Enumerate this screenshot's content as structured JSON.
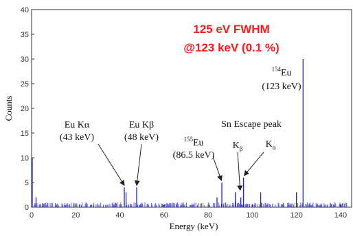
{
  "chart_data": {
    "type": "bar",
    "title_lines": [
      "125 eV FWHM",
      "@123 keV (0.1 %)"
    ],
    "title_color": "#ff1a1a",
    "xlabel": "Energy (keV)",
    "ylabel": "Counts",
    "xlim": [
      0,
      145
    ],
    "ylim": [
      0,
      40
    ],
    "xticks": [
      0,
      20,
      40,
      60,
      80,
      100,
      120,
      140
    ],
    "yticks": [
      0,
      5,
      10,
      15,
      20,
      25,
      30,
      35,
      40
    ],
    "grid": false,
    "series_color": "#1f1fe6",
    "background_noise_max": 1,
    "peaks": [
      {
        "x": 0.3,
        "y": 10
      },
      {
        "x": 2.0,
        "y": 2
      },
      {
        "x": 42.0,
        "y": 4
      },
      {
        "x": 42.8,
        "y": 3
      },
      {
        "x": 47.6,
        "y": 4
      },
      {
        "x": 86.2,
        "y": 5
      },
      {
        "x": 84.0,
        "y": 2
      },
      {
        "x": 92.3,
        "y": 3
      },
      {
        "x": 94.8,
        "y": 2
      },
      {
        "x": 96.0,
        "y": 6
      },
      {
        "x": 103.8,
        "y": 3
      },
      {
        "x": 120.0,
        "y": 3
      },
      {
        "x": 123.0,
        "y": 30
      }
    ],
    "annotations": [
      {
        "id": "eu-ka",
        "lines": [
          {
            "parts": [
              {
                "t": "Eu Kα"
              }
            ]
          },
          {
            "parts": [
              {
                "t": "(43 keV)"
              }
            ]
          }
        ],
        "target": [
          42,
          4
        ]
      },
      {
        "id": "eu-kb",
        "lines": [
          {
            "parts": [
              {
                "t": "Eu Kβ"
              }
            ]
          },
          {
            "parts": [
              {
                "t": "(48 keV)"
              }
            ]
          }
        ],
        "target": [
          47.6,
          4
        ]
      },
      {
        "id": "eu155",
        "lines": [
          {
            "parts": [
              {
                "t": "155",
                "sup": true
              },
              {
                "t": "Eu"
              }
            ]
          },
          {
            "parts": [
              {
                "t": "(86.5 keV)"
              }
            ]
          }
        ],
        "target": [
          86,
          5
        ]
      },
      {
        "id": "sn-escape",
        "lines": [
          {
            "parts": [
              {
                "t": "Sn Escape peak"
              }
            ]
          }
        ]
      },
      {
        "id": "sn-kb",
        "lines": [
          {
            "parts": [
              {
                "t": "K"
              },
              {
                "t": "β",
                "sub": true
              }
            ]
          }
        ],
        "target": [
          94.5,
          3
        ]
      },
      {
        "id": "sn-ka",
        "lines": [
          {
            "parts": [
              {
                "t": "K"
              },
              {
                "t": "α",
                "sub": true
              }
            ]
          }
        ],
        "target": [
          96.3,
          6
        ]
      },
      {
        "id": "eu154",
        "lines": [
          {
            "parts": [
              {
                "t": "154",
                "sup": true
              },
              {
                "t": "Eu"
              }
            ]
          },
          {
            "parts": [
              {
                "t": "(123 keV)"
              }
            ]
          }
        ]
      }
    ]
  }
}
